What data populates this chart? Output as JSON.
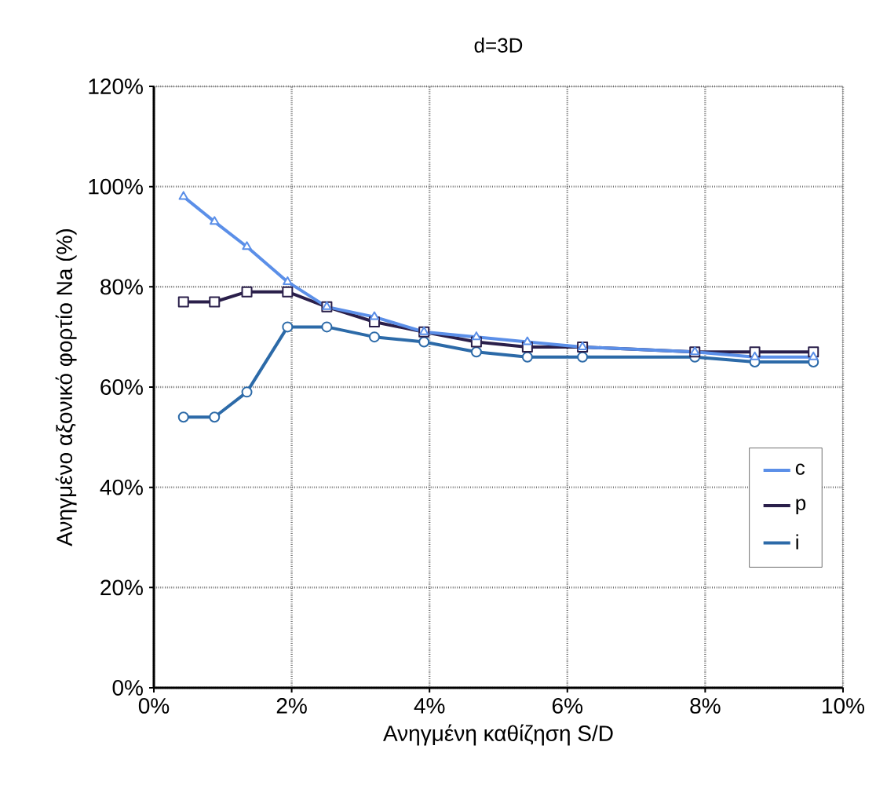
{
  "chart_data": {
    "type": "line",
    "title": "d=3D",
    "xlabel": "Ανηγμένη καθίζηση S/D",
    "ylabel": "Ανηγμένο αξονικό φορτίο Na (%)",
    "x": [
      0.43,
      0.88,
      1.35,
      1.94,
      2.51,
      3.2,
      3.92,
      4.68,
      5.42,
      6.22,
      7.85,
      8.72,
      9.57
    ],
    "series": [
      {
        "name": "c",
        "color": "#5b8fe8",
        "marker": "triangle",
        "values": [
          98,
          93,
          88,
          81,
          76,
          74,
          71,
          70,
          69,
          68,
          67,
          66,
          66
        ]
      },
      {
        "name": "p",
        "color": "#2a1f4a",
        "marker": "square",
        "values": [
          77,
          77,
          79,
          79,
          76,
          73,
          71,
          69,
          68,
          68,
          67,
          67,
          67
        ]
      },
      {
        "name": "i",
        "color": "#2c6aa8",
        "marker": "circle",
        "values": [
          54,
          54,
          59,
          72,
          72,
          70,
          69,
          67,
          66,
          66,
          66,
          65,
          65
        ]
      }
    ],
    "xlim": [
      0,
      10
    ],
    "ylim": [
      0,
      120
    ],
    "xticks": [
      {
        "value": 0,
        "label": "0%"
      },
      {
        "value": 2,
        "label": "2%"
      },
      {
        "value": 4,
        "label": "4%"
      },
      {
        "value": 6,
        "label": "6%"
      },
      {
        "value": 8,
        "label": "8%"
      },
      {
        "value": 10,
        "label": "10%"
      }
    ],
    "yticks": [
      {
        "value": 0,
        "label": "0%"
      },
      {
        "value": 20,
        "label": "20%"
      },
      {
        "value": 40,
        "label": "40%"
      },
      {
        "value": 60,
        "label": "60%"
      },
      {
        "value": 80,
        "label": "80%"
      },
      {
        "value": 100,
        "label": "100%"
      },
      {
        "value": 120,
        "label": "120%"
      }
    ],
    "grid": true,
    "legend": "right",
    "line_style": "solid"
  }
}
